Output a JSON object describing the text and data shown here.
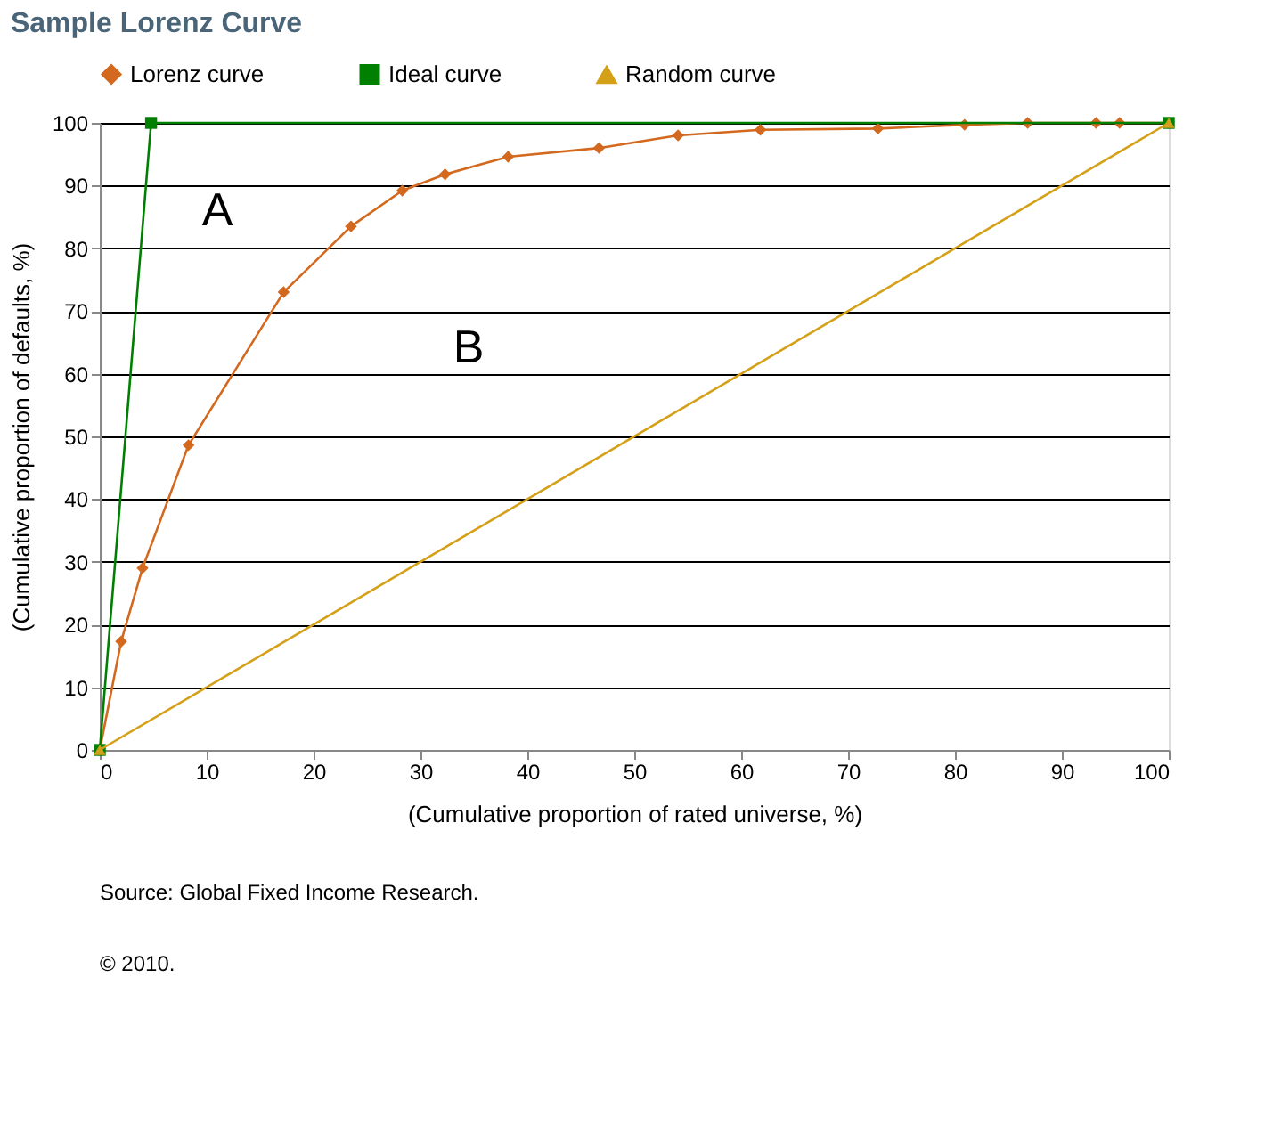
{
  "chart_data": {
    "type": "line",
    "title": "Sample Lorenz Curve",
    "xlabel": "(Cumulative proportion of rated universe, %)",
    "ylabel": "(Cumulative proportion of defaults, %)",
    "series": [
      {
        "name": "Lorenz curve",
        "color": "#d2691e",
        "marker": "diamond",
        "x": [
          0,
          2.0,
          4.0,
          8.3,
          17.2,
          23.5,
          28.3,
          32.3,
          38.2,
          46.7,
          54.1,
          61.8,
          72.8,
          80.9,
          86.8,
          93.2,
          95.4,
          100
        ],
        "values": [
          0,
          17.3,
          29,
          48.6,
          73,
          83.5,
          89.2,
          91.8,
          94.6,
          96,
          98,
          98.9,
          99.1,
          99.7,
          100,
          100,
          100,
          100
        ]
      },
      {
        "name": "Ideal curve",
        "color": "#008000",
        "marker": "square",
        "x": [
          0,
          4.8,
          100
        ],
        "values": [
          0,
          100,
          100
        ]
      },
      {
        "name": "Random curve",
        "color": "#d4a017",
        "marker": "triangle",
        "x": [
          0,
          100
        ],
        "values": [
          0,
          100
        ]
      }
    ],
    "xlim": [
      0,
      100
    ],
    "xticks": [
      0,
      10,
      20,
      30,
      40,
      50,
      60,
      70,
      80,
      90,
      100
    ],
    "ylim": [
      0,
      100
    ],
    "yticks": [
      0,
      10,
      20,
      30,
      40,
      50,
      60,
      70,
      80,
      90,
      100
    ],
    "grid": "y",
    "legend": "top",
    "line_style": "solid",
    "annotations": [
      "A",
      "B",
      "Source: Global Fixed Income Research.",
      "© 2010."
    ]
  }
}
